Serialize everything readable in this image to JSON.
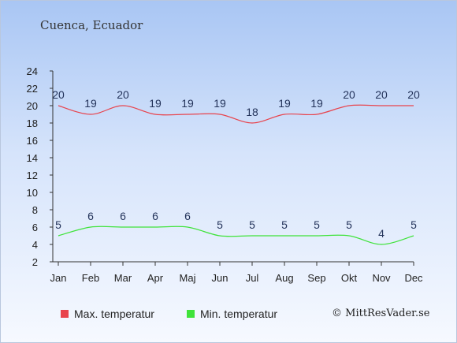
{
  "location": "Cuenca, Ecuador",
  "copyright": "© MittResVader.se",
  "chart_data": {
    "type": "line",
    "categories": [
      "Jan",
      "Feb",
      "Mar",
      "Apr",
      "Maj",
      "Jun",
      "Jul",
      "Aug",
      "Sep",
      "Okt",
      "Nov",
      "Dec"
    ],
    "ylim": [
      2,
      24
    ],
    "yticks": [
      2,
      4,
      6,
      8,
      10,
      12,
      14,
      16,
      18,
      20,
      22,
      24
    ],
    "grid": false,
    "legend_position": "bottom",
    "series": [
      {
        "name": "Max. temperatur",
        "color": "#e8434c",
        "values": [
          20,
          19,
          20,
          19,
          19,
          19,
          18,
          19,
          19,
          20,
          20,
          20
        ]
      },
      {
        "name": "Min. temperatur",
        "color": "#3fe33a",
        "values": [
          5,
          6,
          6,
          6,
          6,
          5,
          5,
          5,
          5,
          5,
          4,
          5
        ]
      }
    ]
  }
}
